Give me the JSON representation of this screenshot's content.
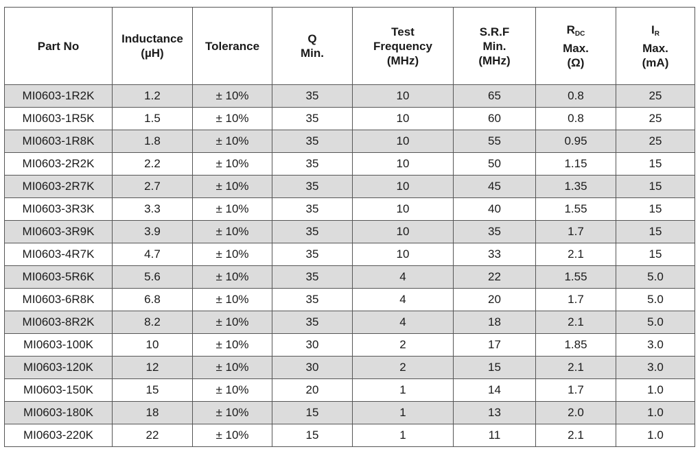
{
  "table": {
    "headers": {
      "part_no": "Part No",
      "inductance": [
        "Inductance",
        "(µH)"
      ],
      "tolerance": "Tolerance",
      "q": [
        "Q",
        "Min."
      ],
      "test_freq": [
        "Test",
        "Frequency",
        "(MHz)"
      ],
      "srf": [
        "S.R.F",
        "Min.",
        "(MHz)"
      ],
      "rdc": {
        "main": "R",
        "sub": "DC",
        "lines": [
          "Max.",
          "(Ω)"
        ]
      },
      "ir": {
        "main": "I",
        "sub": "R",
        "lines": [
          "Max.",
          "(mA)"
        ]
      }
    },
    "rows": [
      [
        "MI0603-1R2K",
        "1.2",
        "± 10%",
        "35",
        "10",
        "65",
        "0.8",
        "25"
      ],
      [
        "MI0603-1R5K",
        "1.5",
        "± 10%",
        "35",
        "10",
        "60",
        "0.8",
        "25"
      ],
      [
        "MI0603-1R8K",
        "1.8",
        "± 10%",
        "35",
        "10",
        "55",
        "0.95",
        "25"
      ],
      [
        "MI0603-2R2K",
        "2.2",
        "± 10%",
        "35",
        "10",
        "50",
        "1.15",
        "15"
      ],
      [
        "MI0603-2R7K",
        "2.7",
        "± 10%",
        "35",
        "10",
        "45",
        "1.35",
        "15"
      ],
      [
        "MI0603-3R3K",
        "3.3",
        "± 10%",
        "35",
        "10",
        "40",
        "1.55",
        "15"
      ],
      [
        "MI0603-3R9K",
        "3.9",
        "± 10%",
        "35",
        "10",
        "35",
        "1.7",
        "15"
      ],
      [
        "MI0603-4R7K",
        "4.7",
        "± 10%",
        "35",
        "10",
        "33",
        "2.1",
        "15"
      ],
      [
        "MI0603-5R6K",
        "5.6",
        "± 10%",
        "35",
        "4",
        "22",
        "1.55",
        "5.0"
      ],
      [
        "MI0603-6R8K",
        "6.8",
        "± 10%",
        "35",
        "4",
        "20",
        "1.7",
        "5.0"
      ],
      [
        "MI0603-8R2K",
        "8.2",
        "± 10%",
        "35",
        "4",
        "18",
        "2.1",
        "5.0"
      ],
      [
        "MI0603-100K",
        "10",
        "± 10%",
        "30",
        "2",
        "17",
        "1.85",
        "3.0"
      ],
      [
        "MI0603-120K",
        "12",
        "± 10%",
        "30",
        "2",
        "15",
        "2.1",
        "3.0"
      ],
      [
        "MI0603-150K",
        "15",
        "± 10%",
        "20",
        "1",
        "14",
        "1.7",
        "1.0"
      ],
      [
        "MI0603-180K",
        "18",
        "± 10%",
        "15",
        "1",
        "13",
        "2.0",
        "1.0"
      ],
      [
        "MI0603-220K",
        "22",
        "± 10%",
        "15",
        "1",
        "11",
        "2.1",
        "1.0"
      ]
    ],
    "shade_color": "#dcdcdc"
  }
}
